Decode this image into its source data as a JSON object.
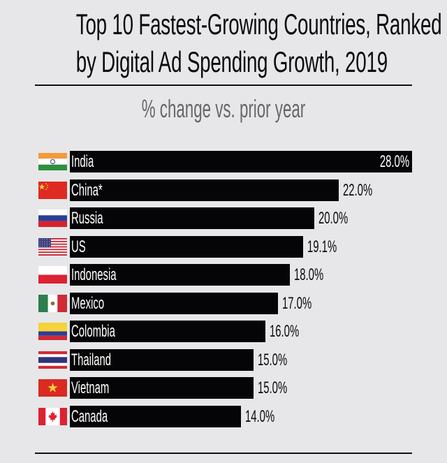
{
  "header": {
    "title_line1": "Top 10 Fastest-Growing Countries, Ranked",
    "title_line2": "by Digital Ad Spending Growth, 2019",
    "subtitle": "% change vs. prior year"
  },
  "colors": {
    "background": "#e7e7e9",
    "bar": "#050507",
    "subtitle": "#676769",
    "text": "#0b0b0d"
  },
  "rows": [
    {
      "country": "India",
      "value": "28.0%",
      "flag": "india-flag"
    },
    {
      "country": "China*",
      "value": "22.0%",
      "flag": "china-flag"
    },
    {
      "country": "Russia",
      "value": "20.0%",
      "flag": "russia-flag"
    },
    {
      "country": "US",
      "value": "19.1%",
      "flag": "us-flag"
    },
    {
      "country": "Indonesia",
      "value": "18.0%",
      "flag": "indonesia-flag"
    },
    {
      "country": "Mexico",
      "value": "17.0%",
      "flag": "mexico-flag"
    },
    {
      "country": "Colombia",
      "value": "16.0%",
      "flag": "colombia-flag"
    },
    {
      "country": "Thailand",
      "value": "15.0%",
      "flag": "thailand-flag"
    },
    {
      "country": "Vietnam",
      "value": "15.0%",
      "flag": "vietnam-flag"
    },
    {
      "country": "Canada",
      "value": "14.0%",
      "flag": "canada-flag"
    }
  ],
  "chart_data": {
    "type": "bar",
    "orientation": "horizontal",
    "title": "Top 10 Fastest-Growing Countries, Ranked by Digital Ad Spending Growth, 2019",
    "subtitle": "% change vs. prior year",
    "categories": [
      "India",
      "China*",
      "Russia",
      "US",
      "Indonesia",
      "Mexico",
      "Colombia",
      "Thailand",
      "Vietnam",
      "Canada"
    ],
    "values": [
      28.0,
      22.0,
      20.0,
      19.1,
      18.0,
      17.0,
      16.0,
      15.0,
      15.0,
      14.0
    ],
    "value_labels": [
      "28.0%",
      "22.0%",
      "20.0%",
      "19.1%",
      "18.0%",
      "17.0%",
      "16.0%",
      "15.0%",
      "15.0%",
      "14.0%"
    ],
    "xlabel": "",
    "ylabel": "",
    "unit": "%",
    "grid": false,
    "legend": "none"
  }
}
